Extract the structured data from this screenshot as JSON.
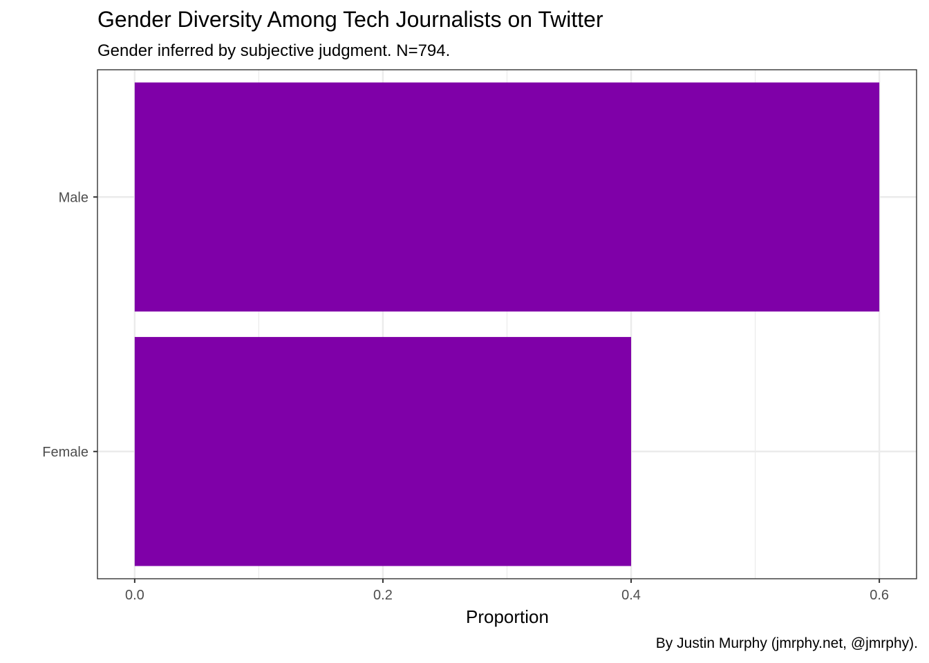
{
  "chart_data": {
    "type": "bar",
    "orientation": "horizontal",
    "title": "Gender Diversity Among Tech Journalists on Twitter",
    "subtitle": "Gender inferred by subjective judgment. N=794.",
    "caption": "By Justin Murphy (jmrphy.net, @jmrphy).",
    "xlabel": "Proportion",
    "ylabel": "",
    "categories": [
      "Male",
      "Female"
    ],
    "values": [
      0.6,
      0.4
    ],
    "xlim": [
      -0.03,
      0.63
    ],
    "xticks": [
      0.0,
      0.2,
      0.4,
      0.6
    ],
    "xtick_labels": [
      "0.0",
      "0.2",
      "0.4",
      "0.6"
    ],
    "grid": true,
    "legend": "none",
    "bar_color": "#7f00a8"
  }
}
